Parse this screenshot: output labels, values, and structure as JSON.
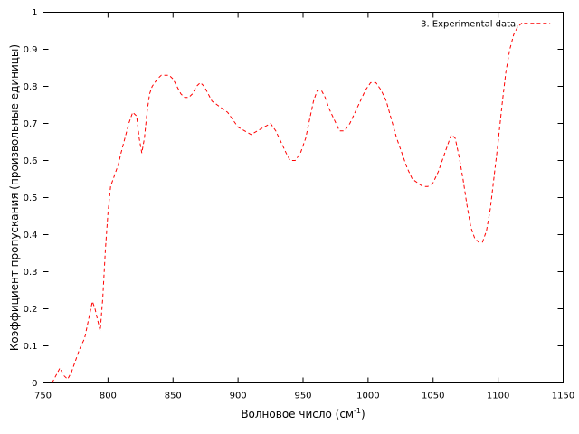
{
  "chart_data": {
    "type": "line",
    "xlabel": "Волновое число (см",
    "xlabel_sup": "-1",
    "xlabel_end": ")",
    "ylabel": "Коэффициент пропускания (произвольные единицы)",
    "xlim": [
      750,
      1150
    ],
    "ylim": [
      0,
      1
    ],
    "xticks": [
      750,
      800,
      850,
      900,
      950,
      1000,
      1050,
      1100,
      1150
    ],
    "yticks": [
      0,
      0.1,
      0.2,
      0.3,
      0.4,
      0.5,
      0.6,
      0.7,
      0.8,
      0.9,
      1
    ],
    "ytick_labels": [
      "0",
      "0.1",
      "0.2",
      "0.3",
      "0.4",
      "0.5",
      "0.6",
      "0.7",
      "0.8",
      "0.9",
      "1"
    ],
    "grid": false,
    "legend_position": "top-right",
    "series": [
      {
        "name": "3. Experimental  data.",
        "color": "#ff0000",
        "dash": "dashed",
        "x": [
          757,
          760,
          763,
          766,
          769,
          772,
          775,
          778,
          782,
          785,
          788,
          790,
          792,
          794,
          796,
          798,
          800,
          802,
          804,
          806,
          808,
          810,
          813,
          816,
          819,
          822,
          824,
          826,
          828,
          830,
          832,
          834,
          836,
          838,
          841,
          844,
          847,
          850,
          853,
          856,
          859,
          862,
          865,
          868,
          871,
          874,
          877,
          880,
          884,
          888,
          892,
          896,
          900,
          905,
          910,
          915,
          920,
          925,
          929,
          933,
          937,
          940,
          944,
          948,
          952,
          955,
          958,
          961,
          964,
          967,
          970,
          974,
          978,
          982,
          986,
          990,
          994,
          998,
          1002,
          1006,
          1010,
          1014,
          1018,
          1022,
          1026,
          1030,
          1034,
          1038,
          1042,
          1046,
          1050,
          1054,
          1058,
          1061,
          1064,
          1067,
          1070,
          1073,
          1076,
          1079,
          1082,
          1085,
          1088,
          1091,
          1094,
          1097,
          1100,
          1103,
          1106,
          1109,
          1112,
          1115,
          1118,
          1120
        ],
        "y": [
          0.0,
          0.02,
          0.04,
          0.02,
          0.01,
          0.03,
          0.06,
          0.09,
          0.12,
          0.17,
          0.22,
          0.2,
          0.17,
          0.14,
          0.23,
          0.36,
          0.46,
          0.53,
          0.55,
          0.57,
          0.59,
          0.62,
          0.66,
          0.7,
          0.73,
          0.72,
          0.66,
          0.62,
          0.66,
          0.73,
          0.78,
          0.8,
          0.81,
          0.82,
          0.83,
          0.83,
          0.83,
          0.82,
          0.8,
          0.78,
          0.77,
          0.77,
          0.78,
          0.8,
          0.81,
          0.8,
          0.78,
          0.76,
          0.75,
          0.74,
          0.73,
          0.71,
          0.69,
          0.68,
          0.67,
          0.68,
          0.69,
          0.7,
          0.68,
          0.65,
          0.62,
          0.6,
          0.6,
          0.62,
          0.66,
          0.71,
          0.76,
          0.79,
          0.79,
          0.77,
          0.74,
          0.71,
          0.68,
          0.68,
          0.7,
          0.73,
          0.76,
          0.79,
          0.81,
          0.81,
          0.79,
          0.76,
          0.71,
          0.66,
          0.62,
          0.58,
          0.55,
          0.54,
          0.53,
          0.53,
          0.54,
          0.57,
          0.61,
          0.64,
          0.67,
          0.66,
          0.61,
          0.55,
          0.48,
          0.42,
          0.39,
          0.38,
          0.38,
          0.41,
          0.47,
          0.56,
          0.65,
          0.75,
          0.84,
          0.9,
          0.94,
          0.96,
          0.97,
          0.97
        ]
      }
    ],
    "legend_sample_x": [
      1120,
      1140
    ],
    "legend_sample_y": [
      0.97,
      0.97
    ]
  }
}
